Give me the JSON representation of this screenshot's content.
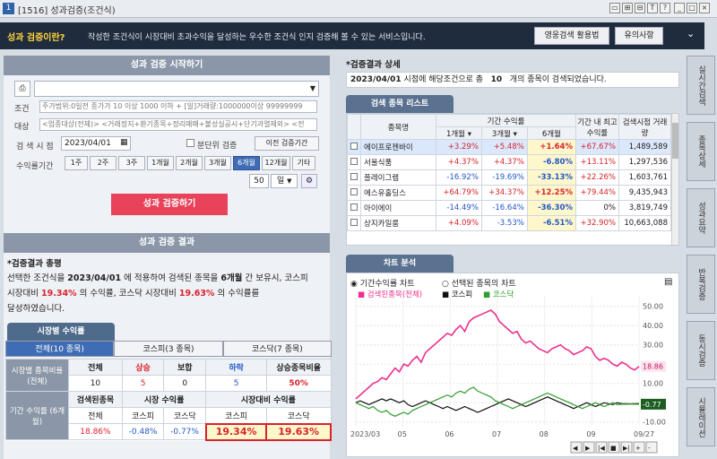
{
  "window": {
    "icon": "1",
    "title": "[1516] 성과검증(조건식)",
    "buttons": [
      "restore-icon",
      "pin-icon",
      "unlink-icon",
      "text-icon",
      "help-icon",
      "minimize-icon",
      "maximize-icon",
      "close-icon"
    ]
  },
  "banner": {
    "question": "성과 검증이란?",
    "desc": "작성한 조건식이 시장대비 초과수익을 달성하는 우수한 조건식 인지 검증해 볼 수 있는 서비스입니다.",
    "btn1": "영웅검색 활용법",
    "btn2": "유의사항"
  },
  "start": {
    "title": "성과 검증 시작하기",
    "cond_label": "조건",
    "target_label": "대상",
    "cond_text": "주가범위:0일전 종가가 10 이상 1000 이하 + [일]거래량:1000000이상 99999999",
    "target_text": "<업종대상(전체)> <거래정지+환기종목+정리매매+불성실공시+단기과열제외> <전",
    "date_label": "검 색 시 점",
    "date": "2023/04/01",
    "intraday": "분단위 검증",
    "prev_btn": "이전 검증기간",
    "period_label": "수익률기간",
    "periods": [
      "1주",
      "2주",
      "3주",
      "1개월",
      "2개월",
      "3개월",
      "6개월",
      "12개월",
      "기타"
    ],
    "period_selected": 6,
    "days": "50",
    "day_unit": "일",
    "run": "성과 검증하기"
  },
  "results": {
    "title": "성과 검증 결과",
    "summary_head": "*검증결과 총평",
    "s1": "선택한 조건식을",
    "date": "2023/04/01",
    "s2": "에 적용하여 검색된 종목을",
    "period": "6개월",
    "s3": "간 보유시, 코스피",
    "s4": "시장대비",
    "kospi_ex": "19.34%",
    "s5": "의 수익률, 코스닥 시장대비",
    "kosdaq_ex": "19.63%",
    "s6": "의 수익률를",
    "s7": "달성하였습니다."
  },
  "market": {
    "tab": "시장별 수익률",
    "subtabs": [
      "전체(10 종목)",
      "코스피(3 종목)",
      "코스닥(7 종목)"
    ],
    "row1_label": "시장별 종목비율 (전체)",
    "heads1": [
      "전체",
      "상승",
      "보합",
      "하락",
      "상승종목비율"
    ],
    "vals1": [
      "10",
      "5",
      "0",
      "5",
      "50%"
    ],
    "row2_label": "기간 수익률 (6개월)",
    "grp1": "검색된종목",
    "grp2": "시장 수익률",
    "grp3": "시장대비 수익률",
    "sub2": [
      "전체",
      "코스피",
      "코스닥",
      "코스피",
      "코스닥"
    ],
    "vals2": [
      "18.86%",
      "-0.48%",
      "-0.77%",
      "19.34%",
      "19.63%"
    ]
  },
  "detail": {
    "head": "*검증결과 상세",
    "date": "2023/04/01",
    "t1": "시점에 해당조건으로 총",
    "count": "10",
    "t2": "개의 종목이 검색되었습니다."
  },
  "list": {
    "tab": "검색 종목 리스트",
    "h_name": "종목명",
    "h_period": "기간 수익률",
    "h_1m": "1개월",
    "h_3m": "3개월",
    "h_6m": "6개월",
    "h_max": "기간 내 최고수익률",
    "h_vol": "검색시점 거래량",
    "rows": [
      [
        "에이프로젠바이",
        "+3.29%",
        "+5.48%",
        "+1.64%",
        "+67.67%",
        "1,489,589"
      ],
      [
        "서울식품",
        "+4.37%",
        "+4.37%",
        "-6.80%",
        "+13.11%",
        "1,297,536"
      ],
      [
        "플레이그램",
        "-16.92%",
        "-19.69%",
        "-33.13%",
        "+22.26%",
        "1,603,761"
      ],
      [
        "에스유홀딩스",
        "+64.79%",
        "+34.37%",
        "+12.25%",
        "+79.44%",
        "9,435,943"
      ],
      [
        "아이에이",
        "-14.49%",
        "-16.64%",
        "-36.30%",
        "0%",
        "3,819,749"
      ],
      [
        "상지카일룸",
        "+4.09%",
        "-3.53%",
        "-6.51%",
        "+32.90%",
        "10,663,088"
      ]
    ]
  },
  "analysis": {
    "tab": "차트 분석",
    "radio1": "기간수익률 차트",
    "radio2": "선택된 종목의 차트"
  },
  "chart_data": {
    "type": "line",
    "series": [
      {
        "name": "검색된종목(전체)",
        "color": "#ee2f8d",
        "values": [
          2,
          4,
          6,
          8,
          10,
          11,
          13,
          12,
          15,
          18,
          16,
          20,
          19,
          22,
          24,
          21,
          26,
          28,
          30,
          32,
          34,
          36,
          35,
          38,
          40,
          37,
          42,
          44,
          45,
          46,
          47,
          48,
          46,
          42,
          40,
          38,
          36,
          37,
          33,
          31,
          32,
          30,
          28,
          27,
          26,
          28,
          29,
          30,
          28,
          27,
          25,
          26,
          27,
          29,
          28,
          24,
          22,
          23,
          22,
          20,
          19,
          21,
          20,
          18,
          17,
          18.86
        ]
      },
      {
        "name": "코스피",
        "color": "#111111",
        "values": [
          0,
          1,
          0,
          -1,
          0,
          1,
          2,
          1,
          2,
          1,
          0,
          1,
          -1,
          -2,
          -1,
          0,
          1,
          0,
          -1,
          -2,
          -3,
          -2,
          -3,
          -4,
          -3,
          -2,
          -3,
          -4,
          -5,
          -4,
          -3,
          -2,
          -1,
          0,
          1,
          2,
          1,
          0,
          -1,
          -2,
          -1,
          0,
          1,
          2,
          3,
          2,
          1,
          0,
          -1,
          -2,
          -3,
          -2,
          -1,
          0,
          -1,
          -2,
          -1,
          0,
          -0.5,
          -1,
          0,
          -0.48,
          -0.5,
          -0.6,
          -0.5,
          -0.48
        ]
      },
      {
        "name": "코스닥",
        "color": "#2f9d2f",
        "values": [
          0,
          -1,
          -2,
          -3,
          -2,
          -4,
          -5,
          -4,
          -6,
          -7,
          -6,
          -5,
          -6,
          -4,
          -3,
          -2,
          -1,
          0,
          1,
          2,
          3,
          4,
          3,
          5,
          6,
          5,
          7,
          8,
          6,
          5,
          4,
          3,
          1,
          0,
          -1,
          -2,
          -3,
          -2,
          -1,
          0,
          1,
          2,
          3,
          4,
          5,
          4,
          3,
          2,
          1,
          0,
          -1,
          -2,
          -3,
          -2,
          -1,
          0,
          -1,
          -2,
          -1,
          0,
          -1,
          -0.77,
          -0.8,
          -0.7,
          -0.8,
          -0.77
        ]
      }
    ],
    "x_labels": [
      "2023/03",
      "05",
      "06",
      "07",
      "08",
      "09",
      "09/27"
    ],
    "y_ticks": [
      "50.00",
      "40.00",
      "30.00",
      "20.00",
      "10.00",
      "0.00",
      "-10.00"
    ],
    "ylim": [
      -12,
      55
    ],
    "last_labels": [
      "18.86",
      "-0.77"
    ]
  },
  "side_tabs": [
    "실시간검색",
    "종목상세",
    "성과요약",
    "반복검증",
    "동시검증",
    "시뮬레이션"
  ]
}
